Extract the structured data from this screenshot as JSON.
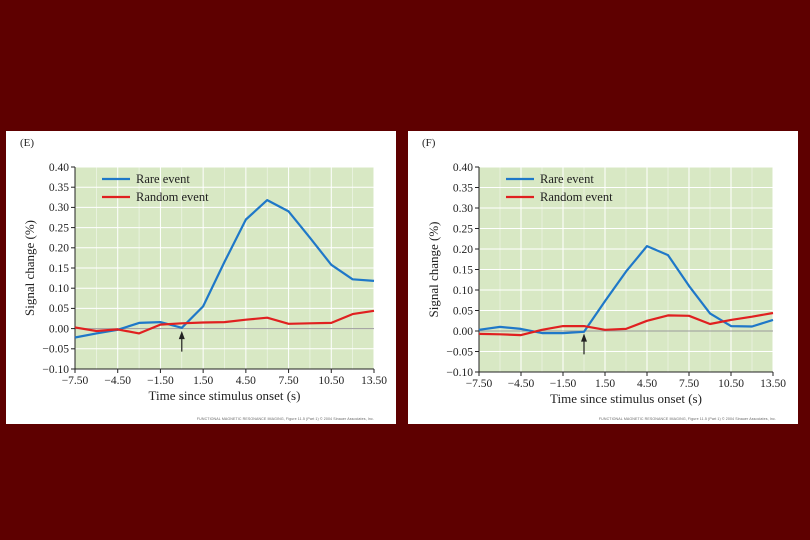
{
  "chart_data": [
    {
      "type": "line",
      "panel_label": "(E)",
      "xlabel": "Time since stimulus onset (s)",
      "ylabel": "Signal change (%)",
      "xlim": [
        -7.5,
        13.5
      ],
      "ylim": [
        -0.1,
        0.4
      ],
      "x_ticks": [
        "−7.50",
        "−4.50",
        "−1.50",
        "1.50",
        "4.50",
        "7.50",
        "10.50",
        "13.50"
      ],
      "x_tick_values": [
        -7.5,
        -4.5,
        -1.5,
        1.5,
        4.5,
        7.5,
        10.5,
        13.5
      ],
      "y_ticks": [
        "0.40",
        "0.35",
        "0.30",
        "0.25",
        "0.20",
        "0.15",
        "0.10",
        "0.05",
        "0.00",
        "−0.05",
        "−0.10"
      ],
      "y_tick_values": [
        0.4,
        0.35,
        0.3,
        0.25,
        0.2,
        0.15,
        0.1,
        0.05,
        0.0,
        -0.05,
        -0.1
      ],
      "grid": true,
      "legend_position": "top-left",
      "stimulus_marker_x": 0,
      "series": [
        {
          "name": "Rare event",
          "color": "#1f78c8",
          "x": [
            -7.5,
            -6,
            -4.5,
            -3,
            -1.5,
            0,
            1.5,
            3,
            4.5,
            6,
            7.5,
            9,
            10.5,
            12,
            13.5
          ],
          "y": [
            -0.022,
            -0.012,
            -0.003,
            0.014,
            0.016,
            0.002,
            0.055,
            0.165,
            0.27,
            0.318,
            0.29,
            0.225,
            0.158,
            0.122,
            0.118
          ]
        },
        {
          "name": "Random event",
          "color": "#e02020",
          "x": [
            -7.5,
            -6,
            -4.5,
            -3,
            -1.5,
            0,
            1.5,
            3,
            4.5,
            6,
            7.5,
            9,
            10.5,
            12,
            13.5
          ],
          "y": [
            0.003,
            -0.006,
            -0.002,
            -0.012,
            0.01,
            0.013,
            0.015,
            0.016,
            0.022,
            0.027,
            0.012,
            0.013,
            0.014,
            0.036,
            0.044
          ]
        }
      ],
      "credit": "FUNCTIONAL MAGNETIC RESONANCE IMAGING, Figure 11.5 (Part 1) © 2004 Sinauer Associates, Inc."
    },
    {
      "type": "line",
      "panel_label": "(F)",
      "xlabel": "Time since stimulus onset (s)",
      "ylabel": "Signal change (%)",
      "xlim": [
        -7.5,
        13.5
      ],
      "ylim": [
        -0.1,
        0.4
      ],
      "x_ticks": [
        "−7.50",
        "−4.50",
        "−1.50",
        "1.50",
        "4.50",
        "7.50",
        "10.50",
        "13.50"
      ],
      "x_tick_values": [
        -7.5,
        -4.5,
        -1.5,
        1.5,
        4.5,
        7.5,
        10.5,
        13.5
      ],
      "y_ticks": [
        "0.40",
        "0.35",
        "0.30",
        "0.25",
        "0.20",
        "0.15",
        "0.10",
        "0.05",
        "0.00",
        "−0.05",
        "−0.10"
      ],
      "y_tick_values": [
        0.4,
        0.35,
        0.3,
        0.25,
        0.2,
        0.15,
        0.1,
        0.05,
        0.0,
        -0.05,
        -0.1
      ],
      "grid": true,
      "legend_position": "top-left",
      "stimulus_marker_x": 0,
      "series": [
        {
          "name": "Rare event",
          "color": "#1f78c8",
          "x": [
            -7.5,
            -6,
            -4.5,
            -3,
            -1.5,
            0,
            1.5,
            3,
            4.5,
            6,
            7.5,
            9,
            10.5,
            12,
            13.5
          ],
          "y": [
            0.003,
            0.01,
            0.005,
            -0.005,
            -0.005,
            -0.002,
            0.073,
            0.145,
            0.207,
            0.185,
            0.11,
            0.043,
            0.012,
            0.011,
            0.027
          ]
        },
        {
          "name": "Random event",
          "color": "#e02020",
          "x": [
            -7.5,
            -6,
            -4.5,
            -3,
            -1.5,
            0,
            1.5,
            3,
            4.5,
            6,
            7.5,
            9,
            10.5,
            12,
            13.5
          ],
          "y": [
            -0.007,
            -0.008,
            -0.01,
            0.003,
            0.012,
            0.012,
            0.003,
            0.005,
            0.025,
            0.038,
            0.037,
            0.017,
            0.027,
            0.035,
            0.044
          ]
        }
      ],
      "credit": "FUNCTIONAL MAGNETIC RESONANCE IMAGING, Figure 11.5 (Part 1) © 2004 Sinauer Associates, Inc."
    }
  ]
}
